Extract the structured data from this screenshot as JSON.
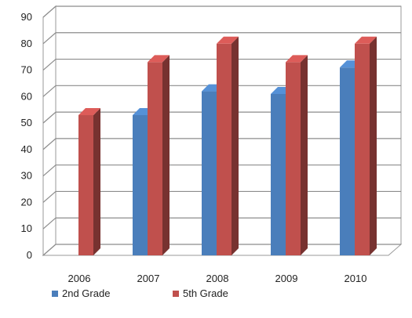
{
  "chart_data": {
    "type": "bar",
    "categories": [
      "2006",
      "2007",
      "2008",
      "2009",
      "2010"
    ],
    "series": [
      {
        "name": "2nd Grade",
        "values": [
          null,
          53,
          62,
          61,
          71
        ],
        "color": "#4a7ebb"
      },
      {
        "name": "5th Grade",
        "values": [
          53,
          73,
          80,
          73,
          80
        ],
        "color": "#c0504d"
      }
    ],
    "yticks": [
      0,
      10,
      20,
      30,
      40,
      50,
      60,
      70,
      80,
      90
    ],
    "ylim": [
      0,
      90
    ],
    "grid": true,
    "legend_position": "bottom",
    "style": "3d-clustered-column"
  }
}
